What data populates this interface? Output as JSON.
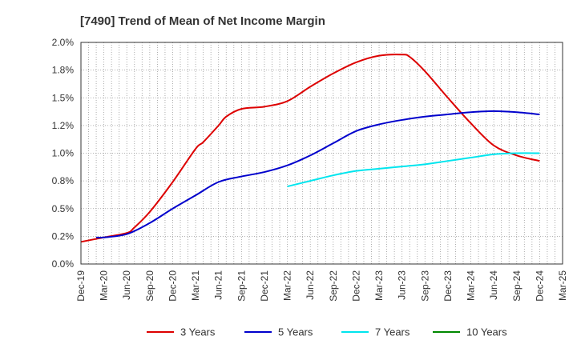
{
  "chart_data": {
    "type": "line",
    "title": "[7490]  Trend of Mean of Net Income Margin",
    "xlabel": "",
    "ylabel": "",
    "x_ticks": [
      "Dec-19",
      "Mar-20",
      "Jun-20",
      "Sep-20",
      "Dec-20",
      "Mar-21",
      "Jun-21",
      "Sep-21",
      "Dec-21",
      "Mar-22",
      "Jun-22",
      "Sep-22",
      "Dec-22",
      "Mar-23",
      "Jun-23",
      "Sep-23",
      "Dec-23",
      "Mar-24",
      "Jun-24",
      "Sep-24",
      "Dec-24",
      "Mar-25"
    ],
    "y_ticks": [
      "0.0%",
      "0.2%",
      "0.5%",
      "0.8%",
      "1.0%",
      "1.2%",
      "1.5%",
      "1.8%",
      "2.0%"
    ],
    "ylim": [
      0,
      2.0
    ],
    "grid": true,
    "legend_position": "bottom",
    "series": [
      {
        "name": "3 Years",
        "color": "#dd0000",
        "x": [
          "Dec-19",
          "Mar-20",
          "Jun-20",
          "Jul-20",
          "Sep-20",
          "Dec-20",
          "Mar-21",
          "Apr-21",
          "Jun-21",
          "Jul-21",
          "Sep-21",
          "Dec-21",
          "Mar-22",
          "Jun-22",
          "Sep-22",
          "Dec-22",
          "Mar-23",
          "Jun-23",
          "Jul-23",
          "Sep-23",
          "Dec-23",
          "Mar-24",
          "Jun-24",
          "Sep-24",
          "Dec-24"
        ],
        "values": [
          0.2,
          0.24,
          0.28,
          0.33,
          0.47,
          0.74,
          1.04,
          1.1,
          1.25,
          1.33,
          1.4,
          1.42,
          1.47,
          1.6,
          1.72,
          1.82,
          1.88,
          1.89,
          1.87,
          1.74,
          1.5,
          1.27,
          1.07,
          0.98,
          0.93
        ]
      },
      {
        "name": "5 Years",
        "color": "#0000cc",
        "x": [
          "Feb-20",
          "Mar-20",
          "Jun-20",
          "Sep-20",
          "Dec-20",
          "Mar-21",
          "Jun-21",
          "Sep-21",
          "Dec-21",
          "Mar-22",
          "Jun-22",
          "Sep-22",
          "Dec-22",
          "Mar-23",
          "Jun-23",
          "Sep-23",
          "Dec-23",
          "Mar-24",
          "Jun-24",
          "Sep-24",
          "Dec-24"
        ],
        "values": [
          0.24,
          0.24,
          0.27,
          0.37,
          0.5,
          0.62,
          0.74,
          0.79,
          0.83,
          0.89,
          0.98,
          1.09,
          1.2,
          1.26,
          1.3,
          1.33,
          1.35,
          1.37,
          1.38,
          1.37,
          1.35
        ]
      },
      {
        "name": "7 Years",
        "color": "#00e5ee",
        "x": [
          "Mar-22",
          "Jun-22",
          "Sep-22",
          "Dec-22",
          "Mar-23",
          "Jun-23",
          "Sep-23",
          "Dec-23",
          "Mar-24",
          "Jun-24",
          "Sep-24",
          "Dec-24"
        ],
        "values": [
          0.7,
          0.75,
          0.8,
          0.84,
          0.86,
          0.88,
          0.9,
          0.93,
          0.96,
          0.99,
          1.0,
          1.0
        ]
      },
      {
        "name": "10 Years",
        "color": "#008800",
        "x": [],
        "values": []
      }
    ]
  }
}
